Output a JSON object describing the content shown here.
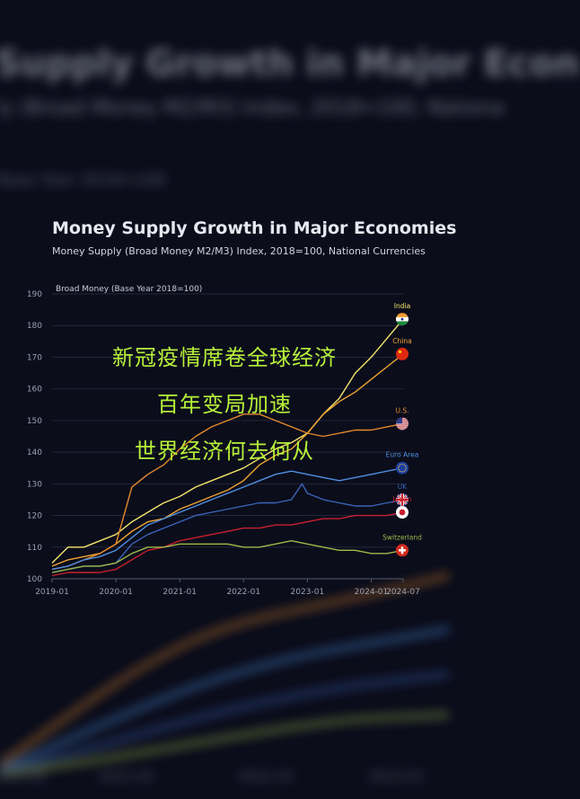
{
  "background": {
    "title": "Supply Growth in Major Econ",
    "subtitle": "ly (Broad Money M2/M3) Index, 2018=100, Nationa",
    "axis_label": "Base Year 2018=100",
    "ticks": [
      "2020-01",
      "2021-01",
      "2022-01",
      "2023-01"
    ]
  },
  "overlay": {
    "line1": "新冠疫情席卷全球经济",
    "line2": "百年变局加速",
    "line3": "世界经济何去何从"
  },
  "chart_data": {
    "type": "line",
    "title": "Money Supply Growth in Major Economies",
    "subtitle": "Money Supply (Broad Money M2/M3) Index, 2018=100, National Currencies",
    "ylabel": "Broad Money (Base Year 2018=100)",
    "ylim": [
      100,
      190
    ],
    "yticks": [
      100,
      110,
      120,
      130,
      140,
      150,
      160,
      170,
      180,
      190
    ],
    "xlim": [
      "2019-01",
      "2024-07"
    ],
    "xticks": [
      "2019-01",
      "2020-01",
      "2021-01",
      "2022-01",
      "2023-01",
      "2024-01",
      "2024-07"
    ],
    "grid": true,
    "legend": "right end labels",
    "series": [
      {
        "name": "India",
        "color": "#f4e36b",
        "flag": "india",
        "x": [
          "2019-01",
          "2019-04",
          "2019-07",
          "2019-10",
          "2020-01",
          "2020-04",
          "2020-07",
          "2020-10",
          "2021-01",
          "2021-04",
          "2021-07",
          "2021-10",
          "2022-01",
          "2022-04",
          "2022-07",
          "2022-10",
          "2023-01",
          "2023-04",
          "2023-07",
          "2023-10",
          "2024-01",
          "2024-04",
          "2024-07"
        ],
        "values": [
          105,
          110,
          110,
          112,
          114,
          118,
          121,
          124,
          126,
          129,
          131,
          133,
          135,
          138,
          141,
          143,
          146,
          152,
          157,
          165,
          170,
          176,
          182
        ]
      },
      {
        "name": "China",
        "color": "#f0a533",
        "flag": "china",
        "x": [
          "2019-01",
          "2019-04",
          "2019-07",
          "2019-10",
          "2020-01",
          "2020-04",
          "2020-07",
          "2020-10",
          "2021-01",
          "2021-04",
          "2021-07",
          "2021-10",
          "2022-01",
          "2022-04",
          "2022-07",
          "2022-10",
          "2023-01",
          "2023-04",
          "2023-07",
          "2023-10",
          "2024-01",
          "2024-04",
          "2024-07"
        ],
        "values": [
          104,
          106,
          107,
          108,
          111,
          115,
          118,
          119,
          122,
          124,
          126,
          128,
          131,
          136,
          139,
          141,
          146,
          152,
          156,
          159,
          163,
          167,
          171
        ]
      },
      {
        "name": "U.S.",
        "color": "#e5892a",
        "flag": "us",
        "x": [
          "2019-01",
          "2019-04",
          "2019-07",
          "2019-10",
          "2020-01",
          "2020-04",
          "2020-07",
          "2020-10",
          "2021-01",
          "2021-04",
          "2021-07",
          "2021-10",
          "2022-01",
          "2022-04",
          "2022-07",
          "2022-10",
          "2023-01",
          "2023-04",
          "2023-07",
          "2023-10",
          "2024-01",
          "2024-04",
          "2024-07"
        ],
        "values": [
          103,
          104,
          106,
          108,
          111,
          129,
          133,
          136,
          141,
          145,
          148,
          150,
          152,
          152,
          150,
          148,
          146,
          145,
          146,
          147,
          147,
          148,
          149
        ]
      },
      {
        "name": "Euro Area",
        "color": "#4f8fe0",
        "flag": "eu",
        "x": [
          "2019-01",
          "2019-04",
          "2019-07",
          "2019-10",
          "2020-01",
          "2020-04",
          "2020-07",
          "2020-10",
          "2021-01",
          "2021-04",
          "2021-07",
          "2021-10",
          "2022-01",
          "2022-04",
          "2022-07",
          "2022-10",
          "2023-01",
          "2023-04",
          "2023-07",
          "2023-10",
          "2024-01",
          "2024-04",
          "2024-07"
        ],
        "values": [
          103,
          104,
          106,
          107,
          109,
          113,
          117,
          119,
          121,
          123,
          125,
          127,
          129,
          131,
          133,
          134,
          133,
          132,
          131,
          132,
          133,
          134,
          135
        ]
      },
      {
        "name": "UK",
        "color": "#3a64b8",
        "flag": "uk",
        "x": [
          "2019-01",
          "2019-04",
          "2019-07",
          "2019-10",
          "2020-01",
          "2020-04",
          "2020-07",
          "2020-10",
          "2021-01",
          "2021-04",
          "2021-07",
          "2021-10",
          "2022-01",
          "2022-04",
          "2022-07",
          "2022-10",
          "2022-12",
          "2023-01",
          "2023-04",
          "2023-07",
          "2023-10",
          "2024-01",
          "2024-04",
          "2024-07"
        ],
        "values": [
          102,
          103,
          104,
          104,
          105,
          111,
          114,
          116,
          118,
          120,
          121,
          122,
          123,
          124,
          124,
          125,
          130,
          127,
          125,
          124,
          123,
          123,
          124,
          125
        ]
      },
      {
        "name": "Japan",
        "color": "#c8202e",
        "flag": "japan",
        "x": [
          "2019-01",
          "2019-04",
          "2019-07",
          "2019-10",
          "2020-01",
          "2020-04",
          "2020-07",
          "2020-10",
          "2021-01",
          "2021-04",
          "2021-07",
          "2021-10",
          "2022-01",
          "2022-04",
          "2022-07",
          "2022-10",
          "2023-01",
          "2023-04",
          "2023-07",
          "2023-10",
          "2024-01",
          "2024-04",
          "2024-07"
        ],
        "values": [
          101,
          102,
          102,
          102,
          103,
          106,
          109,
          110,
          112,
          113,
          114,
          115,
          116,
          116,
          117,
          117,
          118,
          119,
          119,
          120,
          120,
          120,
          121
        ]
      },
      {
        "name": "Switzerland",
        "color": "#9db84a",
        "flag": "swiss",
        "x": [
          "2019-01",
          "2019-04",
          "2019-07",
          "2019-10",
          "2020-01",
          "2020-04",
          "2020-07",
          "2020-10",
          "2021-01",
          "2021-04",
          "2021-07",
          "2021-10",
          "2022-01",
          "2022-04",
          "2022-07",
          "2022-10",
          "2023-01",
          "2023-04",
          "2023-07",
          "2023-10",
          "2024-01",
          "2024-04",
          "2024-07"
        ],
        "values": [
          102,
          103,
          104,
          104,
          105,
          108,
          110,
          110,
          111,
          111,
          111,
          111,
          110,
          110,
          111,
          112,
          111,
          110,
          109,
          109,
          108,
          108,
          109
        ]
      }
    ]
  },
  "colors": {
    "background": "#0b0d1b",
    "overlay_text": "#b7f13a",
    "grid": "#2a2d40"
  }
}
